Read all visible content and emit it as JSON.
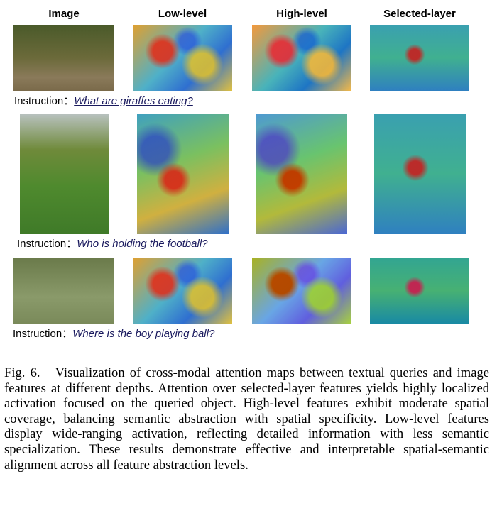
{
  "columns": [
    "Image",
    "Low-level",
    "High-level",
    "Selected-layer"
  ],
  "rows": [
    {
      "instruction_label": "Instruction：",
      "instruction": "What are giraffes eating?"
    },
    {
      "instruction_label": "Instruction：",
      "instruction": "Who is holding the football?"
    },
    {
      "instruction_label": "Instruction：",
      "instruction": "Where is the boy playing ball?"
    }
  ],
  "caption": {
    "label": "Fig. 6.",
    "text": "Visualization of cross-modal attention maps between textual queries and image features at different depths. Attention over selected-layer features yields highly localized activation focused on the queried object. High-level features exhibit moderate spatial coverage, balancing semantic abstraction with spatial specificity. Low-level features display wide-ranging activation, reflecting detailed information with less semantic specialization. These results demonstrate effective and interpretable spatial-semantic alignment across all feature abstraction levels."
  }
}
